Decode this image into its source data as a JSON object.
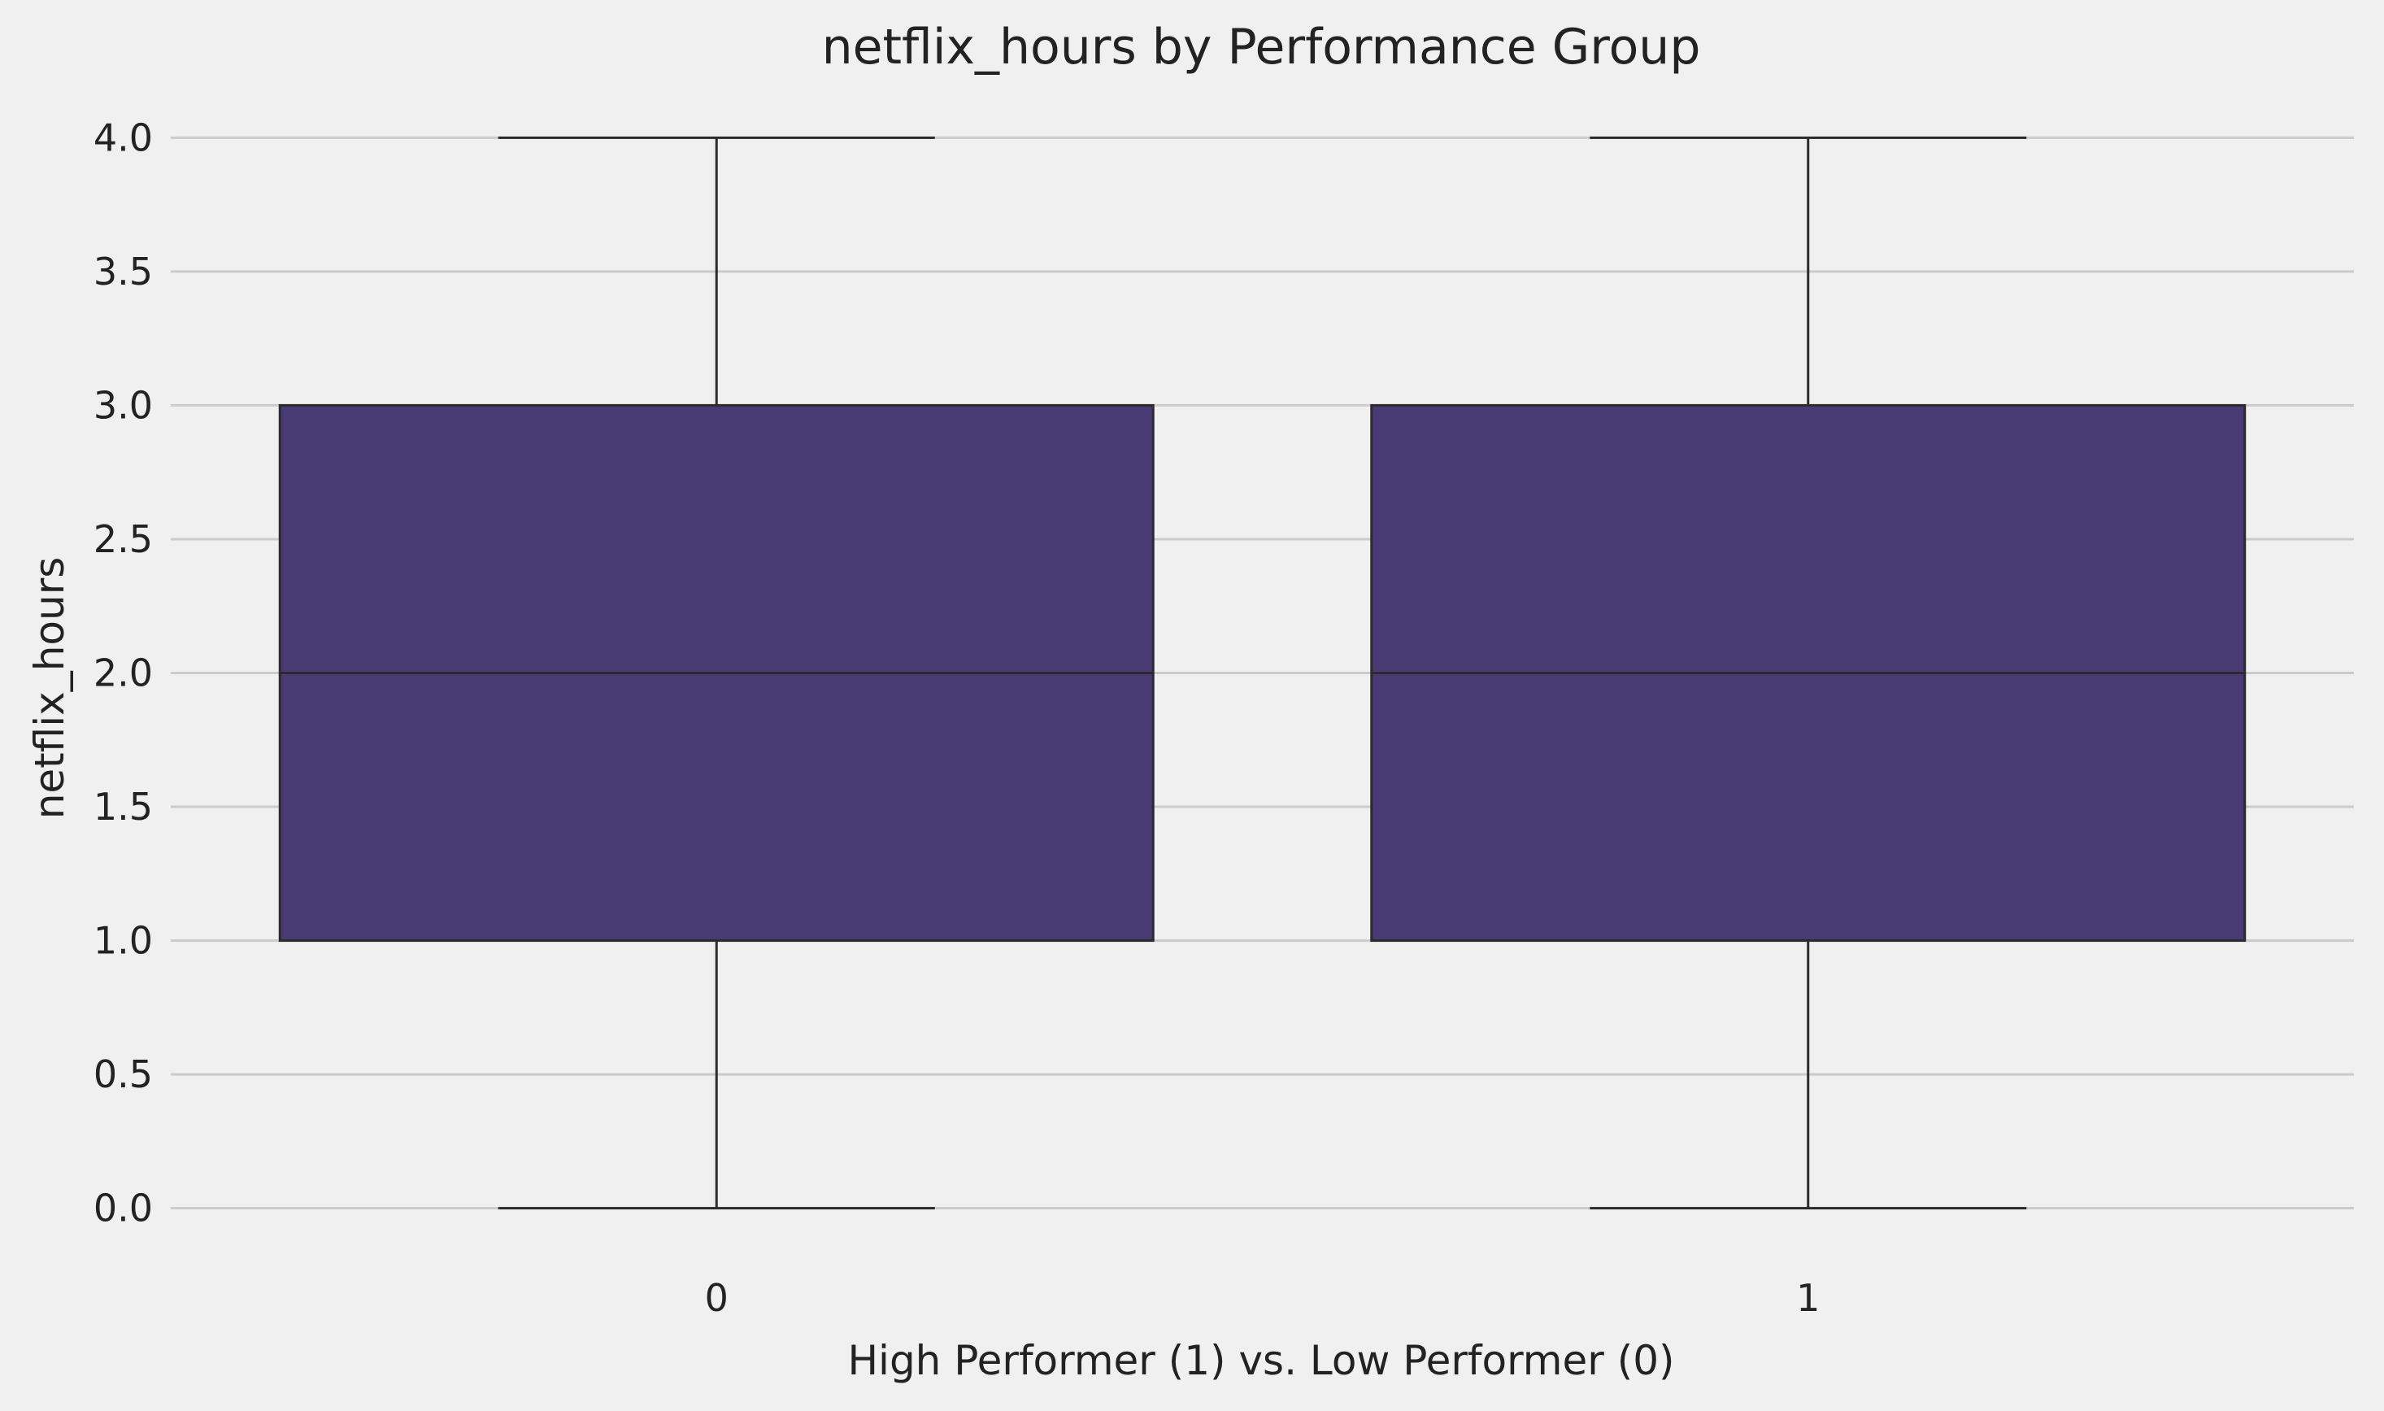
{
  "chart_data": {
    "type": "box",
    "title": "netflix_hours by Performance Group",
    "xlabel": "High Performer (1) vs. Low Performer (0)",
    "ylabel": "netflix_hours",
    "categories": [
      "0",
      "1"
    ],
    "boxes": [
      {
        "category": "0",
        "whisker_low": 0.0,
        "q1": 1.0,
        "median": 2.0,
        "q3": 3.0,
        "whisker_high": 4.0
      },
      {
        "category": "1",
        "whisker_low": 0.0,
        "q1": 1.0,
        "median": 2.0,
        "q3": 3.0,
        "whisker_high": 4.0
      }
    ],
    "ylim": [
      -0.15,
      4.15
    ],
    "yticks": [
      0.0,
      0.5,
      1.0,
      1.5,
      2.0,
      2.5,
      3.0,
      3.5,
      4.0
    ],
    "ytick_labels": [
      "0.0",
      "0.5",
      "1.0",
      "1.5",
      "2.0",
      "2.5",
      "3.0",
      "3.5",
      "4.0"
    ],
    "grid": {
      "y": true,
      "x": false
    },
    "colors": {
      "background": "#f0f0f0",
      "box_fill": "#483b73",
      "box_edge": "#2b2b2b",
      "grid": "#cbcbcb",
      "text": "#222222"
    }
  }
}
